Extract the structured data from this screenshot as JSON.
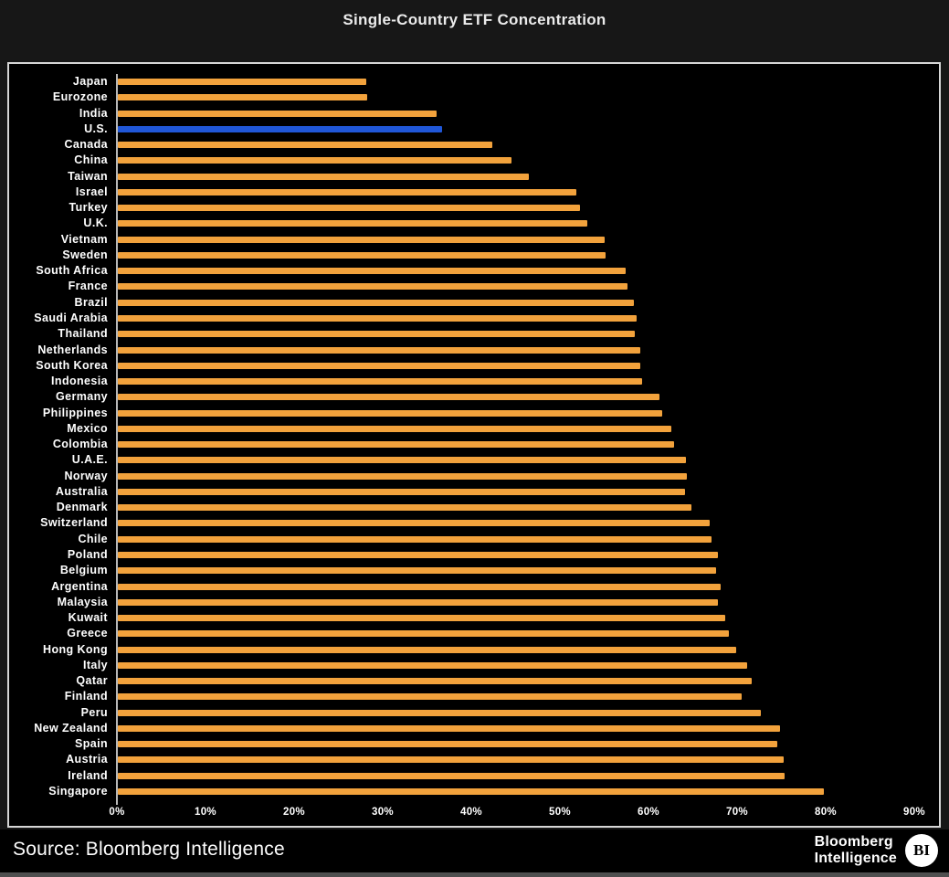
{
  "title": "Single-Country ETF Concentration",
  "footer": {
    "source": "Source: Bloomberg Intelligence",
    "logo_line1": "Bloomberg",
    "logo_line2": "Intelligence",
    "logo_badge": "BI"
  },
  "colors": {
    "bar": "#F2A23C",
    "highlight": "#2057D8",
    "axis": "#B8B8B8",
    "plot_background": "#000000",
    "page_background": "#171717",
    "panel_border": "#D6D6D6",
    "text": "#FFFFFF"
  },
  "chart_data": {
    "type": "bar",
    "orientation": "horizontal",
    "title": "Single-Country ETF Concentration",
    "ylabel": "",
    "xlabel": "",
    "grid": false,
    "legend": false,
    "xlim": [
      0,
      92.9
    ],
    "x_ticks": [
      "0%",
      "10%",
      "20%",
      "30%",
      "40%",
      "50%",
      "60%",
      "70%",
      "80%",
      "90%"
    ],
    "x_tick_values": [
      0,
      10,
      20,
      30,
      40,
      50,
      60,
      70,
      80,
      90
    ],
    "highlight_category": "U.S.",
    "value_unit": "%",
    "categories": [
      "Japan",
      "Eurozone",
      "India",
      "U.S.",
      "Canada",
      "China",
      "Taiwan",
      "Israel",
      "Turkey",
      "U.K.",
      "Vietnam",
      "Sweden",
      "South Africa",
      "France",
      "Brazil",
      "Saudi Arabia",
      "Thailand",
      "Netherlands",
      "South Korea",
      "Indonesia",
      "Germany",
      "Philippines",
      "Mexico",
      "Colombia",
      "U.A.E.",
      "Norway",
      "Australia",
      "Denmark",
      "Switzerland",
      "Chile",
      "Poland",
      "Belgium",
      "Argentina",
      "Malaysia",
      "Kuwait",
      "Greece",
      "Hong Kong",
      "Italy",
      "Qatar",
      "Finland",
      "Peru",
      "New Zealand",
      "Spain",
      "Austria",
      "Ireland",
      "Singapore"
    ],
    "values": [
      28.0,
      28.1,
      36.0,
      36.6,
      42.3,
      44.4,
      46.4,
      51.8,
      52.2,
      53.0,
      54.9,
      55.1,
      57.3,
      57.5,
      58.2,
      58.6,
      58.3,
      59.0,
      59.0,
      59.2,
      61.1,
      61.4,
      62.5,
      62.8,
      64.1,
      64.2,
      64.0,
      64.7,
      66.8,
      67.0,
      67.7,
      67.5,
      68.0,
      67.7,
      68.6,
      69.0,
      69.8,
      71.0,
      71.5,
      70.4,
      72.6,
      74.7,
      74.4,
      75.2,
      75.3,
      79.7
    ]
  }
}
